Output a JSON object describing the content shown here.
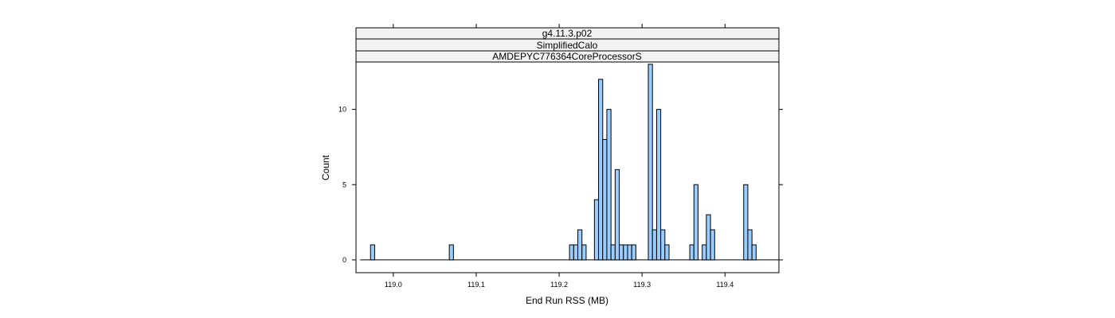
{
  "chart_data": {
    "type": "bar",
    "strips": [
      "g4.11.3.p02",
      "SimplifiedCalo",
      "AMDEPYC776364CoreProcessorS"
    ],
    "xlabel": "End Run RSS (MB)",
    "ylabel": "Count",
    "xlim": [
      118.955,
      119.465
    ],
    "ylim": [
      -0.85,
      13.15
    ],
    "bin_width": 0.005,
    "x_ticks": [
      119.0,
      119.1,
      119.2,
      119.3,
      119.4
    ],
    "x_tick_labels": [
      "119.0",
      "119.1",
      "119.2",
      "119.3",
      "119.4"
    ],
    "y_ticks": [
      0,
      5,
      10
    ],
    "y_tick_labels": [
      "0",
      "5",
      "10"
    ],
    "baseline_range": [
      118.96,
      119.465
    ],
    "bins": [
      {
        "x": 118.975,
        "count": 1
      },
      {
        "x": 119.07,
        "count": 1
      },
      {
        "x": 119.215,
        "count": 1
      },
      {
        "x": 119.22,
        "count": 1
      },
      {
        "x": 119.225,
        "count": 2
      },
      {
        "x": 119.23,
        "count": 1
      },
      {
        "x": 119.245,
        "count": 4
      },
      {
        "x": 119.25,
        "count": 12
      },
      {
        "x": 119.255,
        "count": 8
      },
      {
        "x": 119.26,
        "count": 10
      },
      {
        "x": 119.265,
        "count": 1
      },
      {
        "x": 119.27,
        "count": 6
      },
      {
        "x": 119.275,
        "count": 1
      },
      {
        "x": 119.28,
        "count": 1
      },
      {
        "x": 119.285,
        "count": 1
      },
      {
        "x": 119.29,
        "count": 1
      },
      {
        "x": 119.31,
        "count": 13
      },
      {
        "x": 119.315,
        "count": 2
      },
      {
        "x": 119.32,
        "count": 10
      },
      {
        "x": 119.325,
        "count": 2
      },
      {
        "x": 119.33,
        "count": 1
      },
      {
        "x": 119.36,
        "count": 1
      },
      {
        "x": 119.365,
        "count": 5
      },
      {
        "x": 119.375,
        "count": 1
      },
      {
        "x": 119.38,
        "count": 3
      },
      {
        "x": 119.385,
        "count": 2
      },
      {
        "x": 119.425,
        "count": 5
      },
      {
        "x": 119.43,
        "count": 2
      },
      {
        "x": 119.435,
        "count": 1
      }
    ],
    "colors": {
      "bar_fill": "#99CCFF",
      "bar_stroke": "#000000",
      "strip_fill": "#F2F2F2",
      "frame": "#000000"
    }
  }
}
